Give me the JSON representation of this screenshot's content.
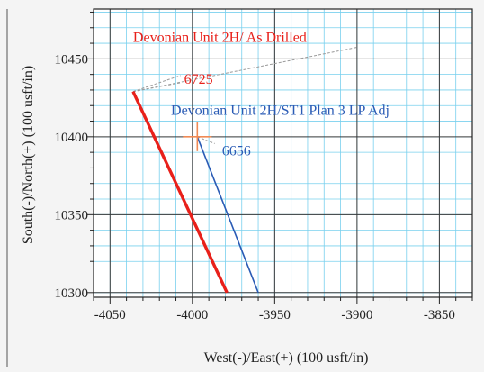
{
  "chart_data": {
    "type": "line",
    "title": "",
    "xlabel": "West(-)/East(+) (100 usft/in)",
    "ylabel": "South(-)/North(+) (100 usft/in)",
    "xlim": [
      -4060,
      -3830
    ],
    "ylim": [
      10297,
      10482
    ],
    "x_ticks": [
      -4050,
      -4000,
      -3950,
      -3900,
      -3850
    ],
    "y_ticks": [
      10300,
      10350,
      10400,
      10450
    ],
    "x_tick_labels": [
      "-4050",
      "-4000",
      "-3950",
      "-3900",
      "-3850"
    ],
    "y_tick_labels": [
      "10300",
      "10350",
      "10400",
      "10450"
    ],
    "grid": true,
    "series": [
      {
        "name": "Devonian Unit 2H/ As Drilled",
        "color": "#e8201a",
        "x": [
          -4036,
          -3979
        ],
        "y": [
          10429,
          10300
        ],
        "end_label": "6725",
        "end_label_at": [
          -4005,
          10437
        ]
      },
      {
        "name": "Devonian Unit 2H/ST1 Plan 3 LP Adj",
        "color": "#2a5bb5",
        "x": [
          -3997,
          -3960
        ],
        "y": [
          10400,
          10300
        ],
        "end_label": "6656",
        "end_label_at": [
          -3982,
          10391
        ]
      }
    ],
    "marker": {
      "symbol": "crosshair",
      "color": "#f08a55",
      "x": -3997,
      "y": 10400
    },
    "annotations": [
      {
        "text": "Devonian Unit 2H/ As Drilled",
        "color": "#e8201a",
        "x": -4036,
        "y": 10461
      },
      {
        "text": "Devonian Unit 2H/ST1 Plan 3 LP Adj",
        "color": "#2a5bb5",
        "x": -4013,
        "y": 10414
      }
    ]
  }
}
